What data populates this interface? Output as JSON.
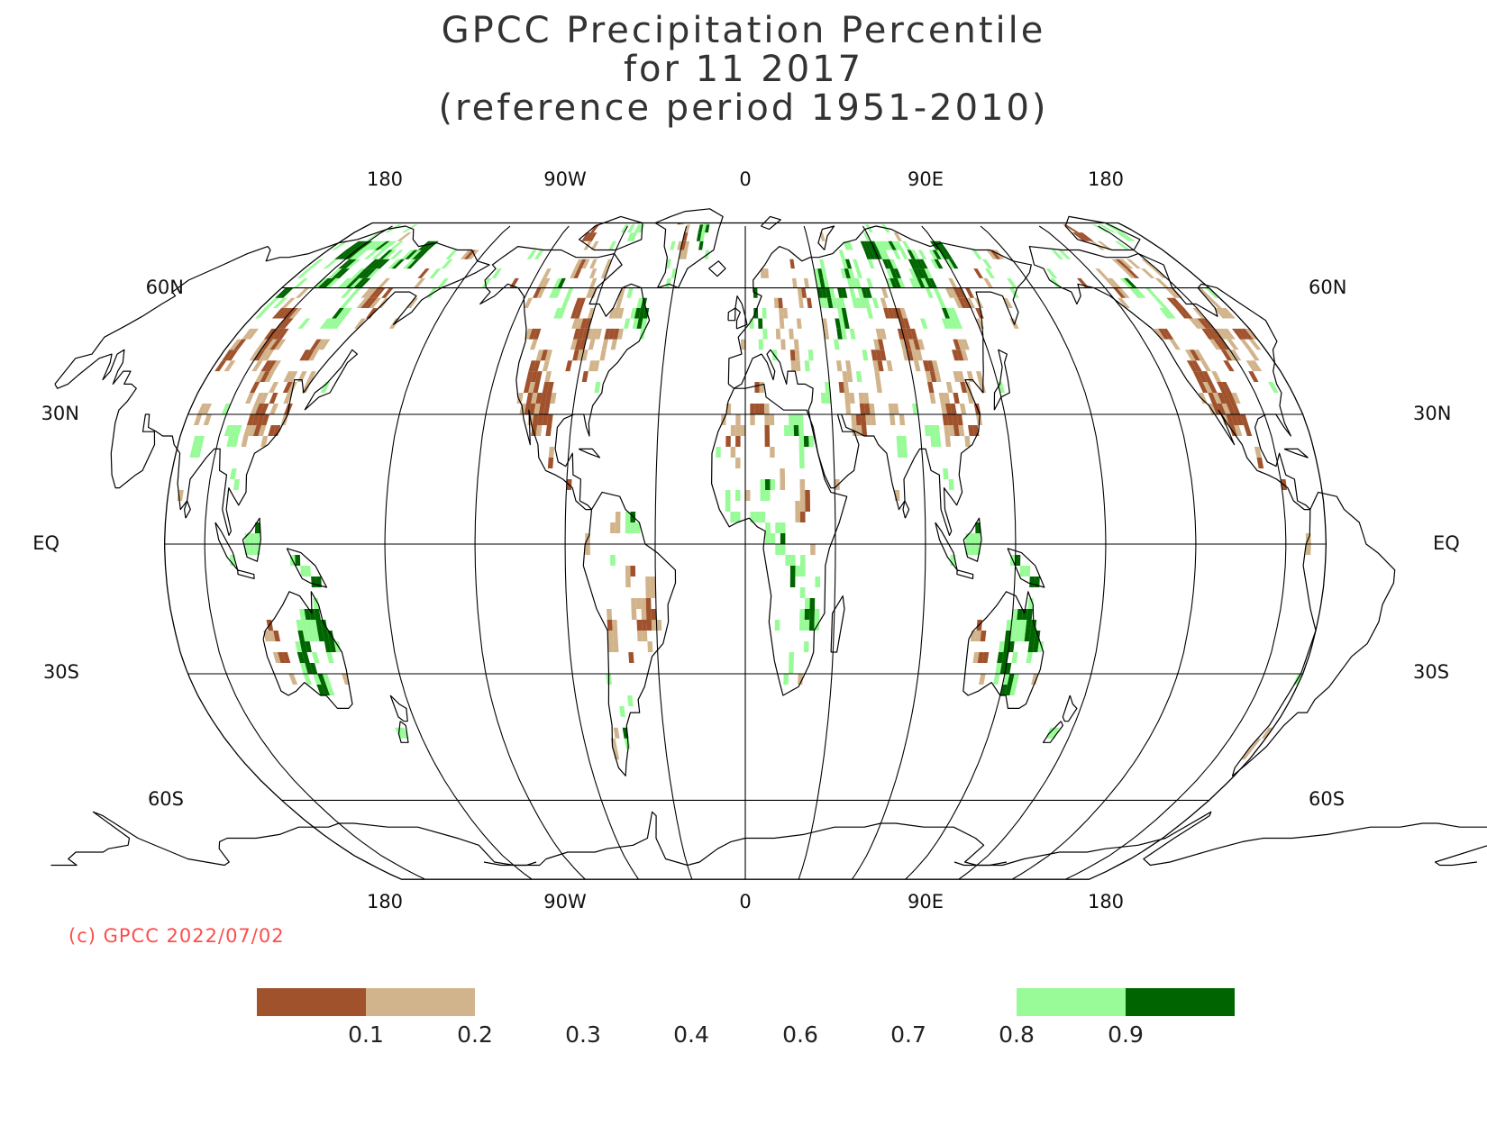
{
  "title": {
    "line1": "GPCC Precipitation Percentile",
    "line2": "for 11 2017",
    "line3": "(reference period 1951-2010)"
  },
  "map": {
    "projection": "Robinson (approx.)",
    "lon_labels_top": [
      "180",
      "90W",
      "0",
      "90E",
      "180"
    ],
    "lon_labels_bottom": [
      "180",
      "90W",
      "0",
      "90E",
      "180"
    ],
    "lat_labels_left": [
      "60N",
      "30N",
      "EQ",
      "30S",
      "60S"
    ],
    "lat_labels_right": [
      "60N",
      "30N",
      "EQ",
      "30S",
      "60S"
    ],
    "graticule_lats": [
      60,
      30,
      0,
      -30,
      -60
    ],
    "graticule_lons": [
      -270,
      -180,
      -135,
      -90,
      -45,
      0,
      45,
      90,
      135,
      180,
      225,
      270
    ],
    "colors": {
      "very_dry": "#a0522d",
      "dry": "#d2b48c",
      "wet": "#98fb98",
      "very_wet": "#006400",
      "coast": "#000000",
      "grid": "#000000"
    }
  },
  "copyright": "(c) GPCC 2022/07/02",
  "colorbar": {
    "ticks": [
      "0.1",
      "0.2",
      "0.3",
      "0.4",
      "0.6",
      "0.7",
      "0.8",
      "0.9"
    ],
    "segments": [
      {
        "from": 0.0,
        "to": 0.1,
        "color": "#a0522d"
      },
      {
        "from": 0.1,
        "to": 0.2,
        "color": "#d2b48c"
      },
      {
        "from": 0.8,
        "to": 0.9,
        "color": "#98fb98"
      },
      {
        "from": 0.9,
        "to": 1.0,
        "color": "#006400"
      }
    ]
  }
}
